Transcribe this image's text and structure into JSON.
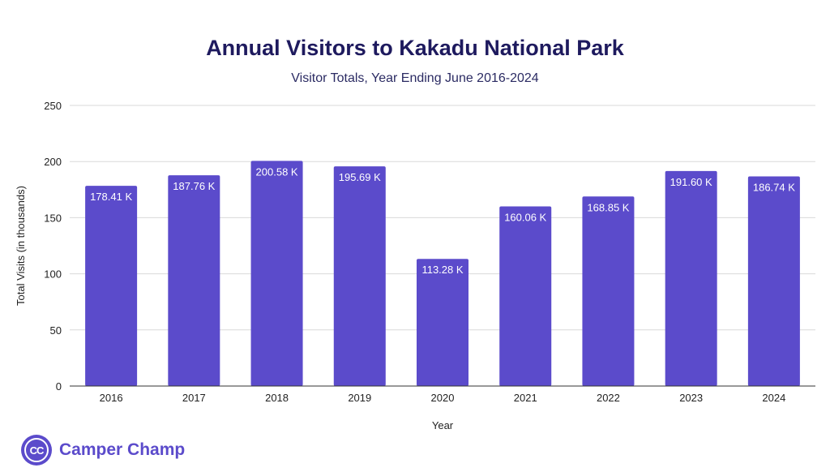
{
  "chart_data": {
    "type": "bar",
    "title": "Annual Visitors to Kakadu National Park",
    "subtitle": "Visitor Totals, Year Ending June 2016-2024",
    "xlabel": "Year",
    "ylabel": "Total Visits (in thousands)",
    "ylim": [
      0,
      250
    ],
    "yticks": [
      "0",
      "50",
      "100",
      "150",
      "200",
      "250"
    ],
    "grid": true,
    "bar_color": "#5b4bcb",
    "categories": [
      "2016",
      "2017",
      "2018",
      "2019",
      "2020",
      "2021",
      "2022",
      "2023",
      "2024"
    ],
    "values": [
      178.41,
      187.76,
      200.58,
      195.69,
      113.28,
      160.06,
      168.85,
      191.6,
      186.74
    ],
    "data_labels": [
      "178.41 K",
      "187.76 K",
      "200.58 K",
      "195.69 K",
      "113.28 K",
      "160.06 K",
      "168.85 K",
      "191.60 K",
      "186.74 K"
    ]
  },
  "brand": {
    "logo_text": "CC",
    "name": "Camper Champ",
    "color": "#5b4bcb"
  }
}
